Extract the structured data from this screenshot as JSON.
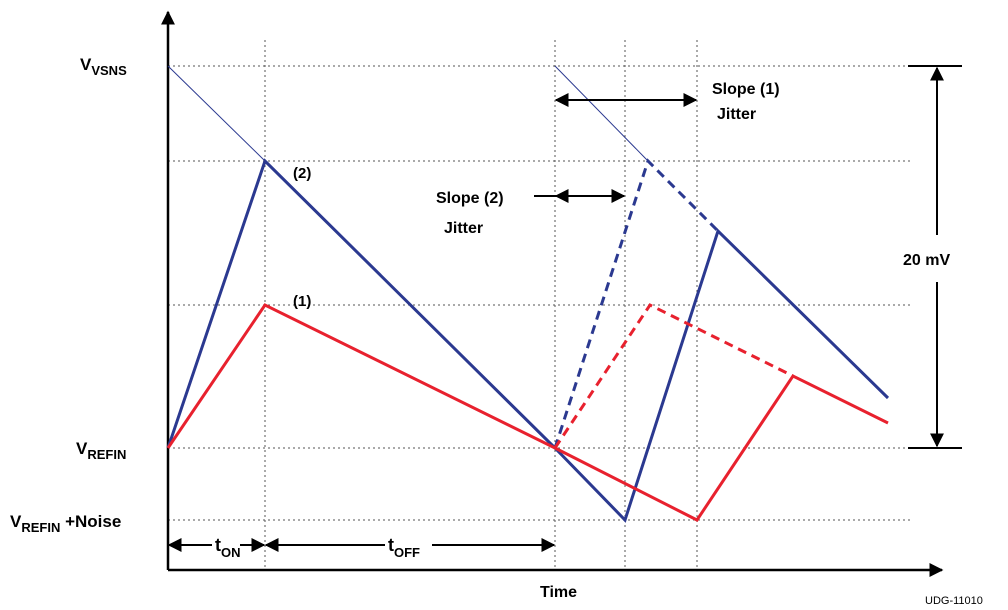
{
  "diagram": {
    "y_labels": {
      "vsns_main": "V",
      "vsns_sub": "VSNS",
      "refin_main": "V",
      "refin_sub": "REFIN",
      "refin_noise_main": "V",
      "refin_noise_sub": "REFIN",
      "refin_noise_suffix": " +Noise"
    },
    "x_axis_label": "Time",
    "ton_main": "t",
    "ton_sub": "ON",
    "toff_main": "t",
    "toff_sub": "OFF",
    "label_2": "(2)",
    "label_1": "(1)",
    "slope1_line1": "Slope (1)",
    "slope1_line2": "Jitter",
    "slope2_line1": "Slope (2)",
    "slope2_line2": "Jitter",
    "amplitude": "20 mV",
    "doc_id": "UDG-11010",
    "colors": {
      "series_1": "#e8212e",
      "series_2": "#2b3990",
      "axis": "#000000",
      "grid": "#555555"
    }
  }
}
